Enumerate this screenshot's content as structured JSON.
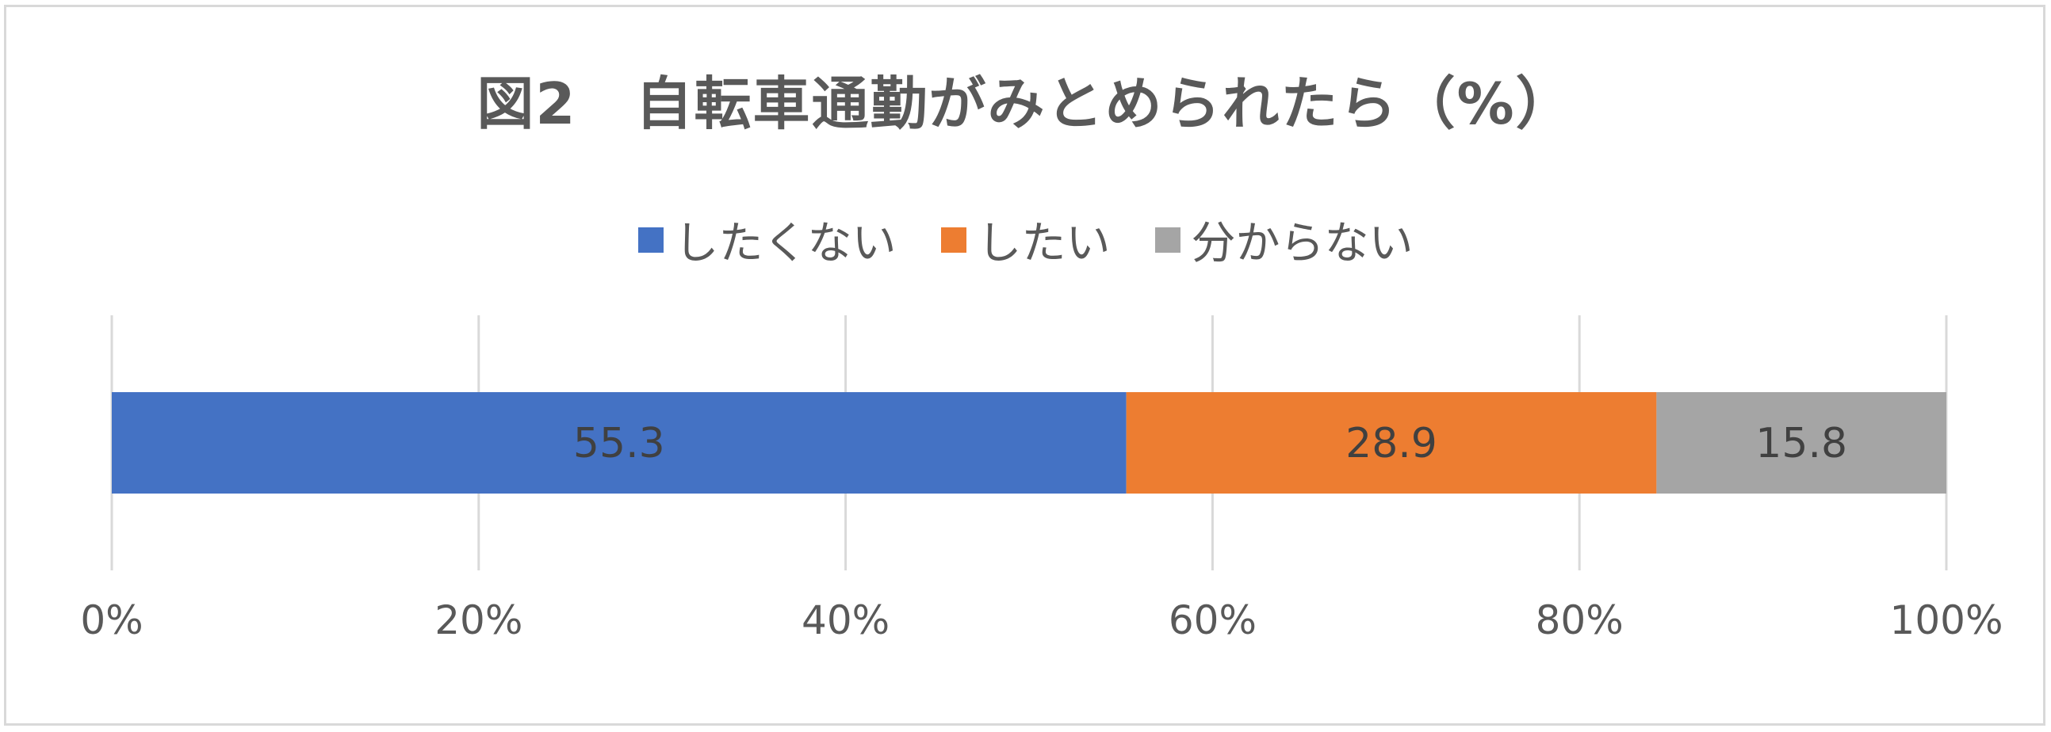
{
  "chart_data": {
    "type": "bar",
    "orientation": "horizontal",
    "stacked": true,
    "title": "図2　自転車通勤がみとめられたら（%）",
    "categories": [
      ""
    ],
    "series": [
      {
        "name": "したくない",
        "values": [
          55.3
        ],
        "color": "#4472c4"
      },
      {
        "name": "したい",
        "values": [
          28.9
        ],
        "color": "#ed7d31"
      },
      {
        "name": "分からない",
        "values": [
          15.8
        ],
        "color": "#a5a5a5"
      }
    ],
    "data_labels": [
      "55.3",
      "28.9",
      "15.8"
    ],
    "xlim": [
      0,
      100
    ],
    "x_ticks": [
      0,
      20,
      40,
      60,
      80,
      100
    ],
    "x_tick_labels": [
      "0%",
      "20%",
      "40%",
      "60%",
      "80%",
      "100%"
    ],
    "grid": true,
    "legend_position": "top"
  }
}
